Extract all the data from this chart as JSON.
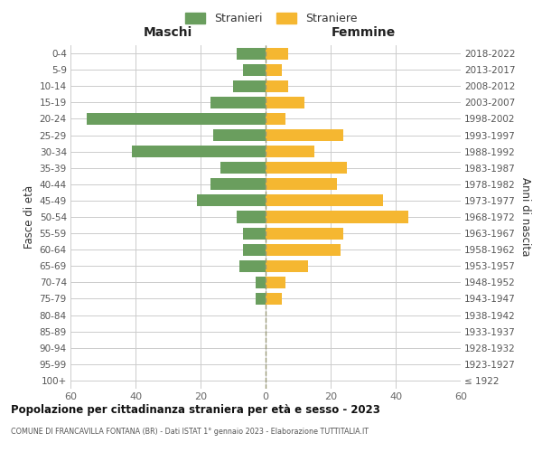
{
  "age_groups": [
    "100+",
    "95-99",
    "90-94",
    "85-89",
    "80-84",
    "75-79",
    "70-74",
    "65-69",
    "60-64",
    "55-59",
    "50-54",
    "45-49",
    "40-44",
    "35-39",
    "30-34",
    "25-29",
    "20-24",
    "15-19",
    "10-14",
    "5-9",
    "0-4"
  ],
  "birth_years": [
    "≤ 1922",
    "1923-1927",
    "1928-1932",
    "1933-1937",
    "1938-1942",
    "1943-1947",
    "1948-1952",
    "1953-1957",
    "1958-1962",
    "1963-1967",
    "1968-1972",
    "1973-1977",
    "1978-1982",
    "1983-1987",
    "1988-1992",
    "1993-1997",
    "1998-2002",
    "2003-2007",
    "2008-2012",
    "2013-2017",
    "2018-2022"
  ],
  "males": [
    0,
    0,
    0,
    0,
    0,
    3,
    3,
    8,
    7,
    7,
    9,
    21,
    17,
    14,
    41,
    16,
    55,
    17,
    10,
    7,
    9
  ],
  "females": [
    0,
    0,
    0,
    0,
    0,
    5,
    6,
    13,
    23,
    24,
    44,
    36,
    22,
    25,
    15,
    24,
    6,
    12,
    7,
    5,
    7
  ],
  "male_color": "#6a9e5e",
  "female_color": "#f5b731",
  "male_label": "Stranieri",
  "female_label": "Straniere",
  "title": "Popolazione per cittadinanza straniera per età e sesso - 2023",
  "subtitle": "COMUNE DI FRANCAVILLA FONTANA (BR) - Dati ISTAT 1° gennaio 2023 - Elaborazione TUTTITALIA.IT",
  "xlabel_left": "Maschi",
  "xlabel_right": "Femmine",
  "ylabel_left": "Fasce di età",
  "ylabel_right": "Anni di nascita",
  "xlim": 60,
  "background_color": "#ffffff",
  "grid_color": "#cccccc",
  "centerline_color": "#999977"
}
